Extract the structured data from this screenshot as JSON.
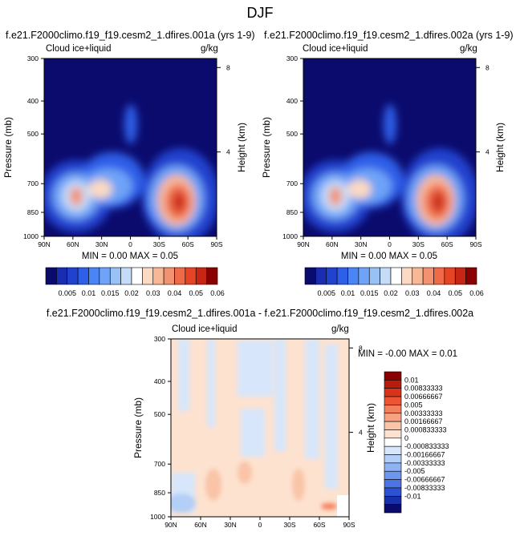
{
  "page_title": "DJF",
  "field_label": "Cloud ice+liquid",
  "units": "g/kg",
  "y_left_label": "Pressure (mb)",
  "y_right_label": "Height (km)",
  "lat_ticks": [
    "90N",
    "60N",
    "30N",
    "0",
    "30S",
    "60S",
    "90S"
  ],
  "pressure_ticks": [
    "300",
    "400",
    "500",
    "700",
    "850",
    "1000"
  ],
  "height_ticks": [
    "8",
    "4"
  ],
  "panels": [
    {
      "title": "f.e21.F2000climo.f19_f19.cesm2_1.dfires.001a (yrs 1-9)",
      "stats": "MIN =  0.00   MAX =  0.05"
    },
    {
      "title": "f.e21.F2000climo.f19_f19.cesm2_1.dfires.002a (yrs 1-9)",
      "stats": "MIN =  0.00   MAX =  0.05"
    },
    {
      "title": "f.e21.F2000climo.f19_f19.cesm2_1.dfires.001a - f.e21.F2000climo.f19_f19.cesm2_1.dfires.002a",
      "stats": "MIN = -0.00   MAX =  0.01"
    }
  ],
  "chart_data": [
    {
      "type": "heatmap",
      "title": "f.e21.F2000climo.f19_f19.cesm2_1.dfires.001a (yrs 1-9)",
      "xlabel": "",
      "ylabel": "Pressure (mb)",
      "y2label": "Height (km)",
      "xlim": [
        90,
        -90
      ],
      "ylim": [
        1000,
        300
      ],
      "yscale": "log",
      "x_ticks": [
        "90N",
        "60N",
        "30N",
        "0",
        "30S",
        "60S",
        "90S"
      ],
      "y_ticks": [
        300,
        400,
        500,
        700,
        850,
        1000
      ],
      "features": [
        {
          "lat": -50,
          "p": 860,
          "value": 0.05
        },
        {
          "lat": 64,
          "p": 860,
          "value": 0.03
        },
        {
          "lat": 36,
          "p": 840,
          "value": 0.02
        },
        {
          "lat": 0,
          "p": 560,
          "value": 0.008
        },
        {
          "lat": -20,
          "p": 620,
          "value": 0.006
        }
      ],
      "stats": {
        "min": 0.0,
        "max": 0.05
      }
    },
    {
      "type": "heatmap",
      "title": "f.e21.F2000climo.f19_f19.cesm2_1.dfires.002a (yrs 1-9)",
      "xlabel": "",
      "ylabel": "Pressure (mb)",
      "y2label": "Height (km)",
      "xlim": [
        90,
        -90
      ],
      "ylim": [
        1000,
        300
      ],
      "yscale": "log",
      "x_ticks": [
        "90N",
        "60N",
        "30N",
        "0",
        "30S",
        "60S",
        "90S"
      ],
      "y_ticks": [
        300,
        400,
        500,
        700,
        850,
        1000
      ],
      "features": [
        {
          "lat": -50,
          "p": 860,
          "value": 0.05
        },
        {
          "lat": 64,
          "p": 860,
          "value": 0.03
        },
        {
          "lat": 36,
          "p": 840,
          "value": 0.02
        },
        {
          "lat": 0,
          "p": 560,
          "value": 0.008
        },
        {
          "lat": -20,
          "p": 620,
          "value": 0.006
        }
      ],
      "stats": {
        "min": 0.0,
        "max": 0.05
      }
    },
    {
      "type": "heatmap",
      "title": "f.e21.F2000climo.f19_f19.cesm2_1.dfires.001a - f.e21.F2000climo.f19_f19.cesm2_1.dfires.002a",
      "xlabel": "",
      "ylabel": "Pressure (mb)",
      "y2label": "Height (km)",
      "xlim": [
        90,
        -90
      ],
      "ylim": [
        1000,
        300
      ],
      "yscale": "log",
      "x_ticks": [
        "90N",
        "60N",
        "30N",
        "0",
        "30S",
        "60S",
        "90S"
      ],
      "y_ticks": [
        300,
        400,
        500,
        700,
        850,
        1000
      ],
      "stats": {
        "min": -0.0,
        "max": 0.01
      }
    }
  ],
  "colorbar_abs": {
    "labels": [
      "0.005",
      "0.01",
      "0.015",
      "0.02",
      "0.03",
      "0.04",
      "0.05",
      "0.06"
    ],
    "colors": [
      "#0b0b6e",
      "#1a2cb0",
      "#2142cf",
      "#2e5fe8",
      "#4a84f5",
      "#6ea3f7",
      "#98c1f6",
      "#c5dcf8",
      "#ffffff",
      "#fbd9c2",
      "#f7b898",
      "#f39270",
      "#ef6a48",
      "#e54425",
      "#c82614",
      "#8b0000"
    ]
  },
  "colorbar_diff": {
    "labels": [
      "0.01",
      "0.00833333",
      "0.00666667",
      "0.005",
      "0.00333333",
      "0.00166667",
      "0.000833333",
      "0",
      "-0.000833333",
      "-0.00166667",
      "-0.00333333",
      "-0.005",
      "-0.00666667",
      "-0.00833333",
      "-0.01"
    ],
    "colors": [
      "#8b0000",
      "#b81c0c",
      "#d93319",
      "#ed5434",
      "#f47f5c",
      "#f7a282",
      "#f9c4a7",
      "#fde2cf",
      "#ffffff",
      "#d7e6fb",
      "#b3cef7",
      "#8eb2f3",
      "#6e95ef",
      "#4c74e6",
      "#2c52d2",
      "#1830a8",
      "#0b0b6e"
    ]
  }
}
